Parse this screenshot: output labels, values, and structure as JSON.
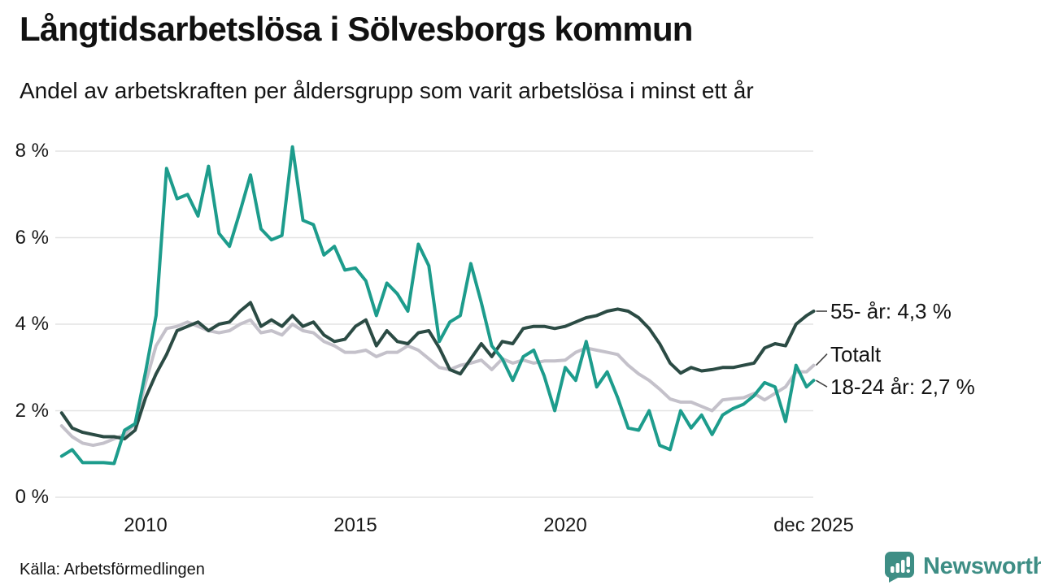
{
  "header": {
    "title": "Långtidsarbetslösa i Sölvesborgs kommun",
    "subtitle": "Andel av arbetskraften per åldersgrupp som varit arbetslösa i minst ett år"
  },
  "footer": {
    "source": "Källa: Arbetsförmedlingen",
    "brand": "Newsworthy"
  },
  "colors": {
    "teal_line": "#1d9c8c",
    "dark_line": "#2b4b44",
    "gray_line": "#c4c1ca",
    "grid": "#e3e3e3",
    "connector": "#444444",
    "text": "#141414",
    "brand_teal": "#3e8e85",
    "background": "#ffffff"
  },
  "chart_data": {
    "type": "line",
    "title": "Långtidsarbetslösa i Sölvesborgs kommun",
    "subtitle": "Andel av arbetskraften per åldersgrupp som varit arbetslösa i minst ett år",
    "xlabel": "",
    "ylabel": "",
    "x_unit": "decimal_year",
    "xlim": [
      2007.85,
      2025.95
    ],
    "ylim": [
      0,
      8
    ],
    "grid": "horizontal",
    "legend_position": "right-end-annotations",
    "x": [
      2008.0,
      2008.25,
      2008.5,
      2008.75,
      2009.0,
      2009.25,
      2009.5,
      2009.75,
      2010.0,
      2010.25,
      2010.5,
      2010.75,
      2011.0,
      2011.25,
      2011.5,
      2011.75,
      2012.0,
      2012.25,
      2012.5,
      2012.75,
      2013.0,
      2013.25,
      2013.5,
      2013.75,
      2014.0,
      2014.25,
      2014.5,
      2014.75,
      2015.0,
      2015.25,
      2015.5,
      2015.75,
      2016.0,
      2016.25,
      2016.5,
      2016.75,
      2017.0,
      2017.25,
      2017.5,
      2017.75,
      2018.0,
      2018.25,
      2018.5,
      2018.75,
      2019.0,
      2019.25,
      2019.5,
      2019.75,
      2020.0,
      2020.25,
      2020.5,
      2020.75,
      2021.0,
      2021.25,
      2021.5,
      2021.75,
      2022.0,
      2022.25,
      2022.5,
      2022.75,
      2023.0,
      2023.25,
      2023.5,
      2023.75,
      2024.0,
      2024.25,
      2024.5,
      2024.75,
      2025.0,
      2025.25,
      2025.5,
      2025.75,
      2025.92
    ],
    "series": [
      {
        "name": "Totalt",
        "color": "#c4c1ca",
        "values": [
          1.65,
          1.4,
          1.25,
          1.2,
          1.25,
          1.35,
          1.45,
          1.7,
          2.65,
          3.5,
          3.9,
          3.95,
          4.05,
          3.95,
          3.85,
          3.8,
          3.85,
          4.0,
          4.1,
          3.8,
          3.85,
          3.75,
          4.0,
          3.85,
          3.8,
          3.6,
          3.5,
          3.35,
          3.35,
          3.4,
          3.25,
          3.35,
          3.35,
          3.5,
          3.4,
          3.2,
          3.0,
          2.95,
          3.05,
          3.1,
          3.17,
          2.95,
          3.2,
          3.1,
          3.17,
          3.1,
          3.15,
          3.15,
          3.17,
          3.35,
          3.45,
          3.4,
          3.35,
          3.3,
          3.05,
          2.85,
          2.7,
          2.5,
          2.27,
          2.2,
          2.2,
          2.1,
          2.0,
          2.25,
          2.28,
          2.3,
          2.4,
          2.25,
          2.4,
          2.55,
          2.9,
          2.9,
          3.05
        ]
      },
      {
        "name": "55- år",
        "color": "#2b4b44",
        "values": [
          1.95,
          1.6,
          1.5,
          1.45,
          1.4,
          1.4,
          1.35,
          1.55,
          2.3,
          2.85,
          3.3,
          3.85,
          3.95,
          4.05,
          3.85,
          4.0,
          4.05,
          4.3,
          4.5,
          3.95,
          4.1,
          3.95,
          4.2,
          3.95,
          4.05,
          3.75,
          3.6,
          3.65,
          3.95,
          4.1,
          3.5,
          3.85,
          3.6,
          3.55,
          3.8,
          3.85,
          3.45,
          2.95,
          2.85,
          3.2,
          3.55,
          3.25,
          3.6,
          3.55,
          3.9,
          3.95,
          3.95,
          3.9,
          3.95,
          4.05,
          4.15,
          4.2,
          4.3,
          4.35,
          4.3,
          4.15,
          3.9,
          3.55,
          3.1,
          2.87,
          3.0,
          2.92,
          2.95,
          3.0,
          3.0,
          3.05,
          3.1,
          3.45,
          3.55,
          3.5,
          4.0,
          4.2,
          4.3
        ]
      },
      {
        "name": "18-24 år",
        "color": "#1d9c8c",
        "values": [
          0.95,
          1.1,
          0.8,
          0.8,
          0.8,
          0.78,
          1.55,
          1.7,
          2.9,
          4.2,
          7.6,
          6.9,
          7.0,
          6.5,
          7.65,
          6.1,
          5.8,
          6.6,
          7.45,
          6.2,
          5.95,
          6.05,
          8.1,
          6.4,
          6.3,
          5.6,
          5.8,
          5.25,
          5.3,
          5.0,
          4.2,
          4.95,
          4.7,
          4.3,
          5.85,
          5.35,
          3.6,
          4.05,
          4.2,
          5.4,
          4.5,
          3.5,
          3.2,
          2.7,
          3.25,
          3.4,
          2.8,
          2.0,
          3.0,
          2.7,
          3.6,
          2.55,
          2.9,
          2.3,
          1.6,
          1.55,
          2.0,
          1.2,
          1.1,
          2.0,
          1.6,
          1.9,
          1.45,
          1.9,
          2.05,
          2.15,
          2.35,
          2.65,
          2.55,
          1.75,
          3.05,
          2.55,
          2.7
        ]
      }
    ],
    "annotations": [
      {
        "text": "55- år: 4,3 %",
        "series": "55- år",
        "value": 4.3
      },
      {
        "text": "Totalt",
        "series": "Totalt",
        "value": 3.05
      },
      {
        "text": "18-24 år: 2,7 %",
        "series": "18-24 år",
        "value": 2.7
      }
    ],
    "x_ticks": [
      {
        "value": 2010,
        "label": "2010"
      },
      {
        "value": 2015,
        "label": "2015"
      },
      {
        "value": 2020,
        "label": "2020"
      },
      {
        "value": 2025.92,
        "label": "dec 2025"
      }
    ],
    "y_ticks": [
      {
        "value": 0,
        "label": "0 %"
      },
      {
        "value": 2,
        "label": "2 %"
      },
      {
        "value": 4,
        "label": "4 %"
      },
      {
        "value": 6,
        "label": "6 %"
      },
      {
        "value": 8,
        "label": "8 %"
      }
    ]
  }
}
